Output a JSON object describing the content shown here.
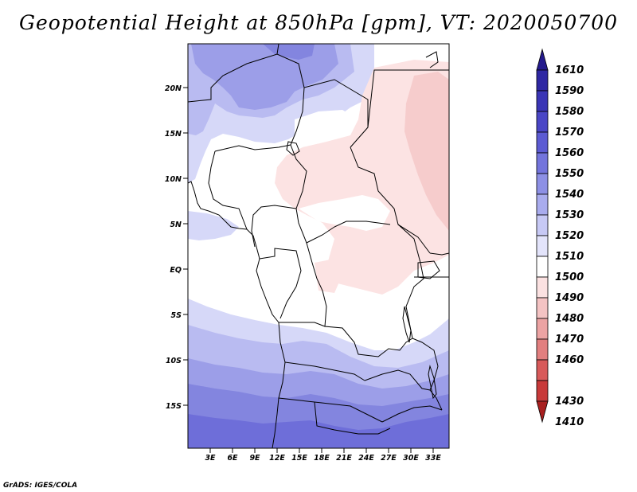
{
  "title": "Geopotential Height at 850hPa [gpm], VT: 2020050700",
  "credit": "GrADS: IGES/COLA",
  "lat_ticks": [
    "20N",
    "15N",
    "10N",
    "5N",
    "EQ",
    "5S",
    "10S",
    "15S"
  ],
  "lon_ticks": [
    "3E",
    "6E",
    "9E",
    "12E",
    "15E",
    "18E",
    "21E",
    "24E",
    "27E",
    "30E",
    "33E"
  ],
  "colorbar": {
    "labels": [
      "1610",
      "1590",
      "1580",
      "1570",
      "1560",
      "1550",
      "1540",
      "1530",
      "1520",
      "1510",
      "1500",
      "1490",
      "1480",
      "1470",
      "1460",
      "1430",
      "1410"
    ],
    "colors": [
      "#241a8c",
      "#2e27a3",
      "#3a35b6",
      "#4a46c6",
      "#5c5bd3",
      "#7374dc",
      "#8d90e5",
      "#a9acee",
      "#c7c9f5",
      "#e3e4fb",
      "#ffffff",
      "#fbe1e1",
      "#f4c3c3",
      "#eca3a3",
      "#e27f7f",
      "#d85a5a",
      "#c83a3a",
      "#a81f1f"
    ]
  },
  "field_colors": {
    "h1560": "#6e6ed9",
    "h1550": "#8385df",
    "h1540": "#9c9ee8",
    "h1530": "#b9bbf1",
    "h1520": "#d6d8f8",
    "h1510": "#ffffff",
    "h1500": "#fce3e3",
    "h1490": "#f6cccc"
  }
}
